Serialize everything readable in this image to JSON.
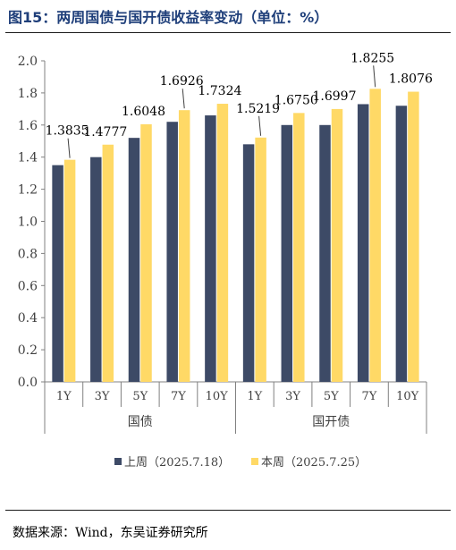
{
  "figure": {
    "title": "图15：两周国债与国开债收益率变动（单位：%）",
    "source": "数据来源：Wind，东吴证券研究所"
  },
  "chart_data": {
    "type": "bar",
    "group_labels": [
      "国债",
      "国开债"
    ],
    "categories": [
      "1Y",
      "3Y",
      "5Y",
      "7Y",
      "10Y",
      "1Y",
      "3Y",
      "5Y",
      "7Y",
      "10Y"
    ],
    "category_groups": [
      0,
      0,
      0,
      0,
      0,
      1,
      1,
      1,
      1,
      1
    ],
    "series": [
      {
        "name": "上周（2025.7.18）",
        "color": "#3d4a66",
        "values": [
          1.35,
          1.4,
          1.52,
          1.62,
          1.66,
          1.48,
          1.6,
          1.6,
          1.73,
          1.72
        ],
        "labels": [
          "",
          "",
          "",
          "",
          "",
          "",
          "",
          "",
          "",
          ""
        ]
      },
      {
        "name": "本周（2025.7.25）",
        "color": "#ffd966",
        "values": [
          1.3835,
          1.4777,
          1.6048,
          1.6926,
          1.7324,
          1.5219,
          1.675,
          1.6997,
          1.8255,
          1.8076
        ],
        "labels": [
          "1.3835",
          "1.4777",
          "1.6048",
          "1.6926",
          "1.7324",
          "1.5219",
          "1.6750",
          "1.6997",
          "1.8255",
          "1.8076"
        ]
      }
    ],
    "ylim": [
      0,
      2.0
    ],
    "yticks": [
      "0.0",
      "0.2",
      "0.4",
      "0.6",
      "0.8",
      "1.0",
      "1.2",
      "1.4",
      "1.6",
      "1.8",
      "2.0"
    ],
    "grid": false,
    "legend_position": "bottom"
  }
}
